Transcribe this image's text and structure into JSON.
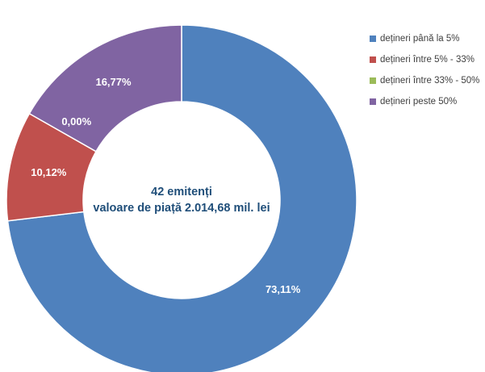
{
  "chart_data": {
    "type": "pie",
    "variant": "donut",
    "center_label": {
      "line1": "42 emitenți",
      "line2": "valoare de piață 2.014,68 mil. lei"
    },
    "categories": [
      "dețineri până la 5%",
      "dețineri între 5% - 33%",
      "dețineri între 33% - 50%",
      "dețineri peste 50%"
    ],
    "values": [
      73.11,
      10.12,
      0.0,
      16.77
    ],
    "data_labels": [
      "73,11%",
      "10,12%",
      "0,00%",
      "16,77%"
    ],
    "colors": [
      "#4f81bd",
      "#c0504d",
      "#9bbb59",
      "#8064a2"
    ],
    "legend_position": "right"
  }
}
